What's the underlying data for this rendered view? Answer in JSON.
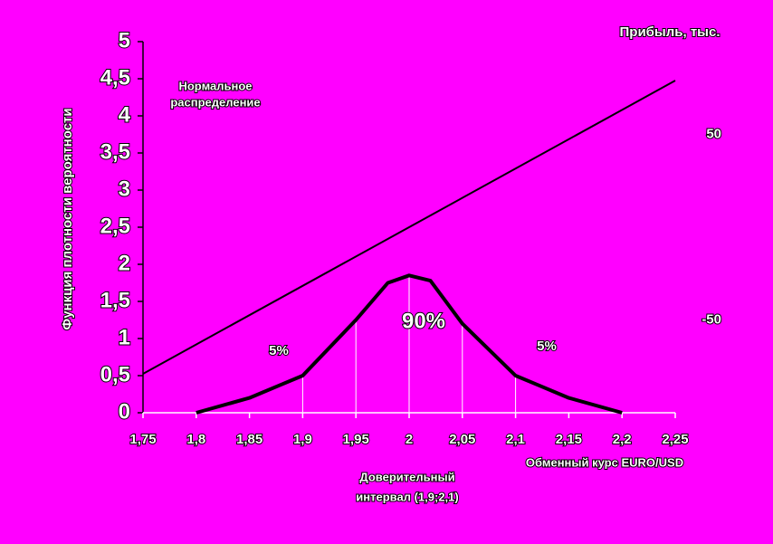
{
  "chart_data": {
    "type": "line",
    "title_y": "Функция плотности вероятности",
    "title_y2": "Прибыль, тыс.",
    "title_x": "Обменный курс EURO/USD",
    "background": "#ff00ff",
    "xlim": [
      1.75,
      2.25
    ],
    "xticks": [
      {
        "value": 1.75,
        "label": "1,75"
      },
      {
        "value": 1.8,
        "label": "1,8"
      },
      {
        "value": 1.85,
        "label": "1,85"
      },
      {
        "value": 1.9,
        "label": "1,9"
      },
      {
        "value": 1.95,
        "label": "1,95"
      },
      2,
      {
        "value": 2.05,
        "label": "2,05"
      },
      {
        "value": 2.1,
        "label": "2,1"
      },
      {
        "value": 2.15,
        "label": "2,15"
      },
      {
        "value": 2.2,
        "label": "2,2"
      },
      {
        "value": 2.25,
        "label": "2,25"
      }
    ],
    "ylim": [
      0,
      5
    ],
    "yticks": [
      0,
      {
        "value": 0.5,
        "label": "0,5"
      },
      1,
      {
        "value": 1.5,
        "label": "1,5"
      },
      2,
      {
        "value": 2.5,
        "label": "2,5"
      },
      3,
      {
        "value": 3.5,
        "label": "3,5"
      },
      4,
      {
        "value": 4.5,
        "label": "4,5"
      },
      5
    ],
    "y2lim": [
      -100,
      100
    ],
    "y2ticks": [
      -50,
      50
    ],
    "interval": [
      1.9,
      2.1
    ],
    "series": [
      {
        "name": "Нормальное распределение",
        "color": "#000000",
        "axis": "y",
        "x": [
          1.8,
          1.85,
          1.88,
          1.9,
          1.95,
          1.98,
          2,
          2.02,
          2.05,
          2.1,
          2.12,
          2.15,
          2.2
        ],
        "values": [
          0,
          0.2,
          0.38,
          0.5,
          1.25,
          1.75,
          1.85,
          1.78,
          1.2,
          0.5,
          0.38,
          0.2,
          0
        ]
      },
      {
        "name": "Прибыль",
        "color": "#000000",
        "axis": "y2",
        "x": [
          1.75,
          2.25
        ],
        "values": [
          -79,
          79
        ]
      }
    ],
    "annotations": [
      {
        "lines": [
          "Нормальное",
          "распределение"
        ]
      },
      {
        "lines": [
          "5%"
        ]
      },
      {
        "lines": [
          "90%"
        ]
      },
      {
        "lines": [
          "5%"
        ]
      },
      {
        "lines": [
          "Доверительный",
          "интервал (1,9;2,1)"
        ]
      }
    ]
  }
}
